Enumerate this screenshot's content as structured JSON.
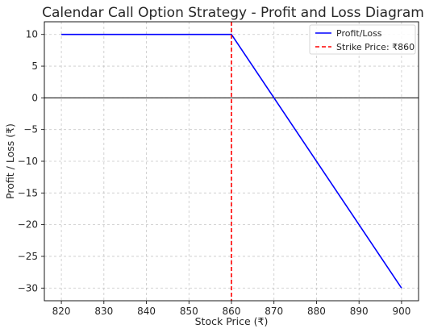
{
  "chart_data": {
    "type": "line",
    "title": "Calendar Call Option Strategy - Profit and Loss Diagram",
    "xlabel": "Stock Price (₹)",
    "ylabel": "Profit / Loss (₹)",
    "xlim": [
      816,
      904
    ],
    "ylim": [
      -32,
      12
    ],
    "xticks": [
      820,
      830,
      840,
      850,
      860,
      870,
      880,
      890,
      900
    ],
    "yticks": [
      10,
      5,
      0,
      -5,
      -10,
      -15,
      -20,
      -25,
      -30
    ],
    "ytick_labels": [
      "10",
      "5",
      "0",
      "−5",
      "−10",
      "−15",
      "−20",
      "−25",
      "−30"
    ],
    "grid": true,
    "legend_position": "top-right",
    "series": [
      {
        "name": "Profit/Loss",
        "color": "#0000ff",
        "style": "solid",
        "x": [
          820,
          860,
          900
        ],
        "y": [
          10,
          10,
          -30
        ]
      }
    ],
    "reference_lines": [
      {
        "orientation": "vertical",
        "x": 860,
        "name": "Strike Price: ₹860",
        "color": "#ff0000",
        "style": "dashed"
      },
      {
        "orientation": "horizontal",
        "y": 0,
        "color": "#000000",
        "style": "solid"
      }
    ]
  }
}
